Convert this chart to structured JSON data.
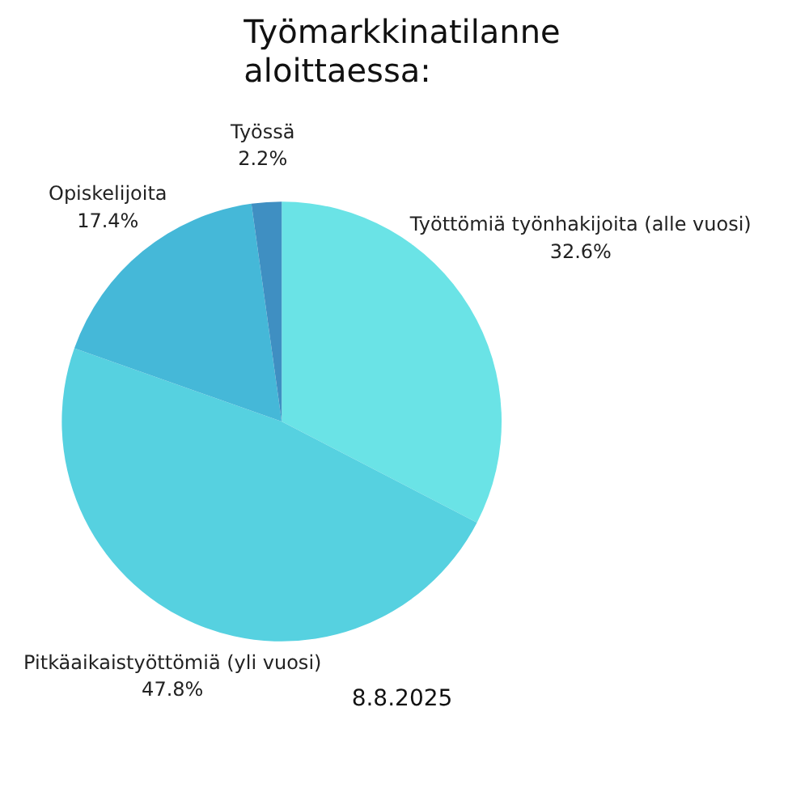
{
  "chart_data": {
    "type": "pie",
    "title": "Työmarkkinatilanne\naloittaessa:",
    "categories": [
      "Työttömiä työnhakijoita (alle vuosi)",
      "Pitkäaikaistyöttömiä (yli vuosi)",
      "Opiskelijoita",
      "Työssä"
    ],
    "values": [
      32.6,
      47.8,
      17.4,
      2.2
    ],
    "value_labels": [
      "32.6%",
      "47.8%",
      "17.4%",
      "2.2%"
    ],
    "colors": [
      "#6ae3e6",
      "#56d1e0",
      "#45b8d8",
      "#3f8fc2"
    ],
    "annotations": [
      "8.8.2025"
    ]
  }
}
